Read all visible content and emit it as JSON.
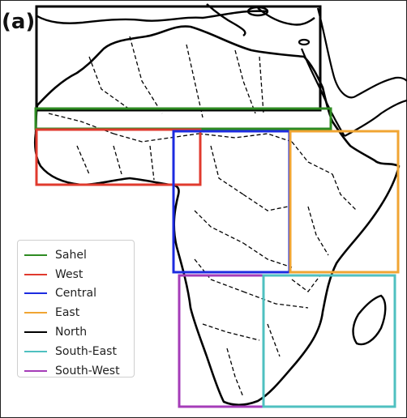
{
  "panel_label": "(a)",
  "map": {
    "region_name": "Africa",
    "style": {
      "coastline_color": "#000000",
      "border_color": "#000000",
      "border_style": "dashed"
    }
  },
  "legend": {
    "items": [
      {
        "label": "Sahel",
        "color": "#2e8b22"
      },
      {
        "label": "West",
        "color": "#e03a2e"
      },
      {
        "label": "Central",
        "color": "#1c2be0"
      },
      {
        "label": "East",
        "color": "#f0a533"
      },
      {
        "label": "North",
        "color": "#000000"
      },
      {
        "label": "South-East",
        "color": "#4fc0c0"
      },
      {
        "label": "South-West",
        "color": "#a53cb8"
      }
    ]
  }
}
